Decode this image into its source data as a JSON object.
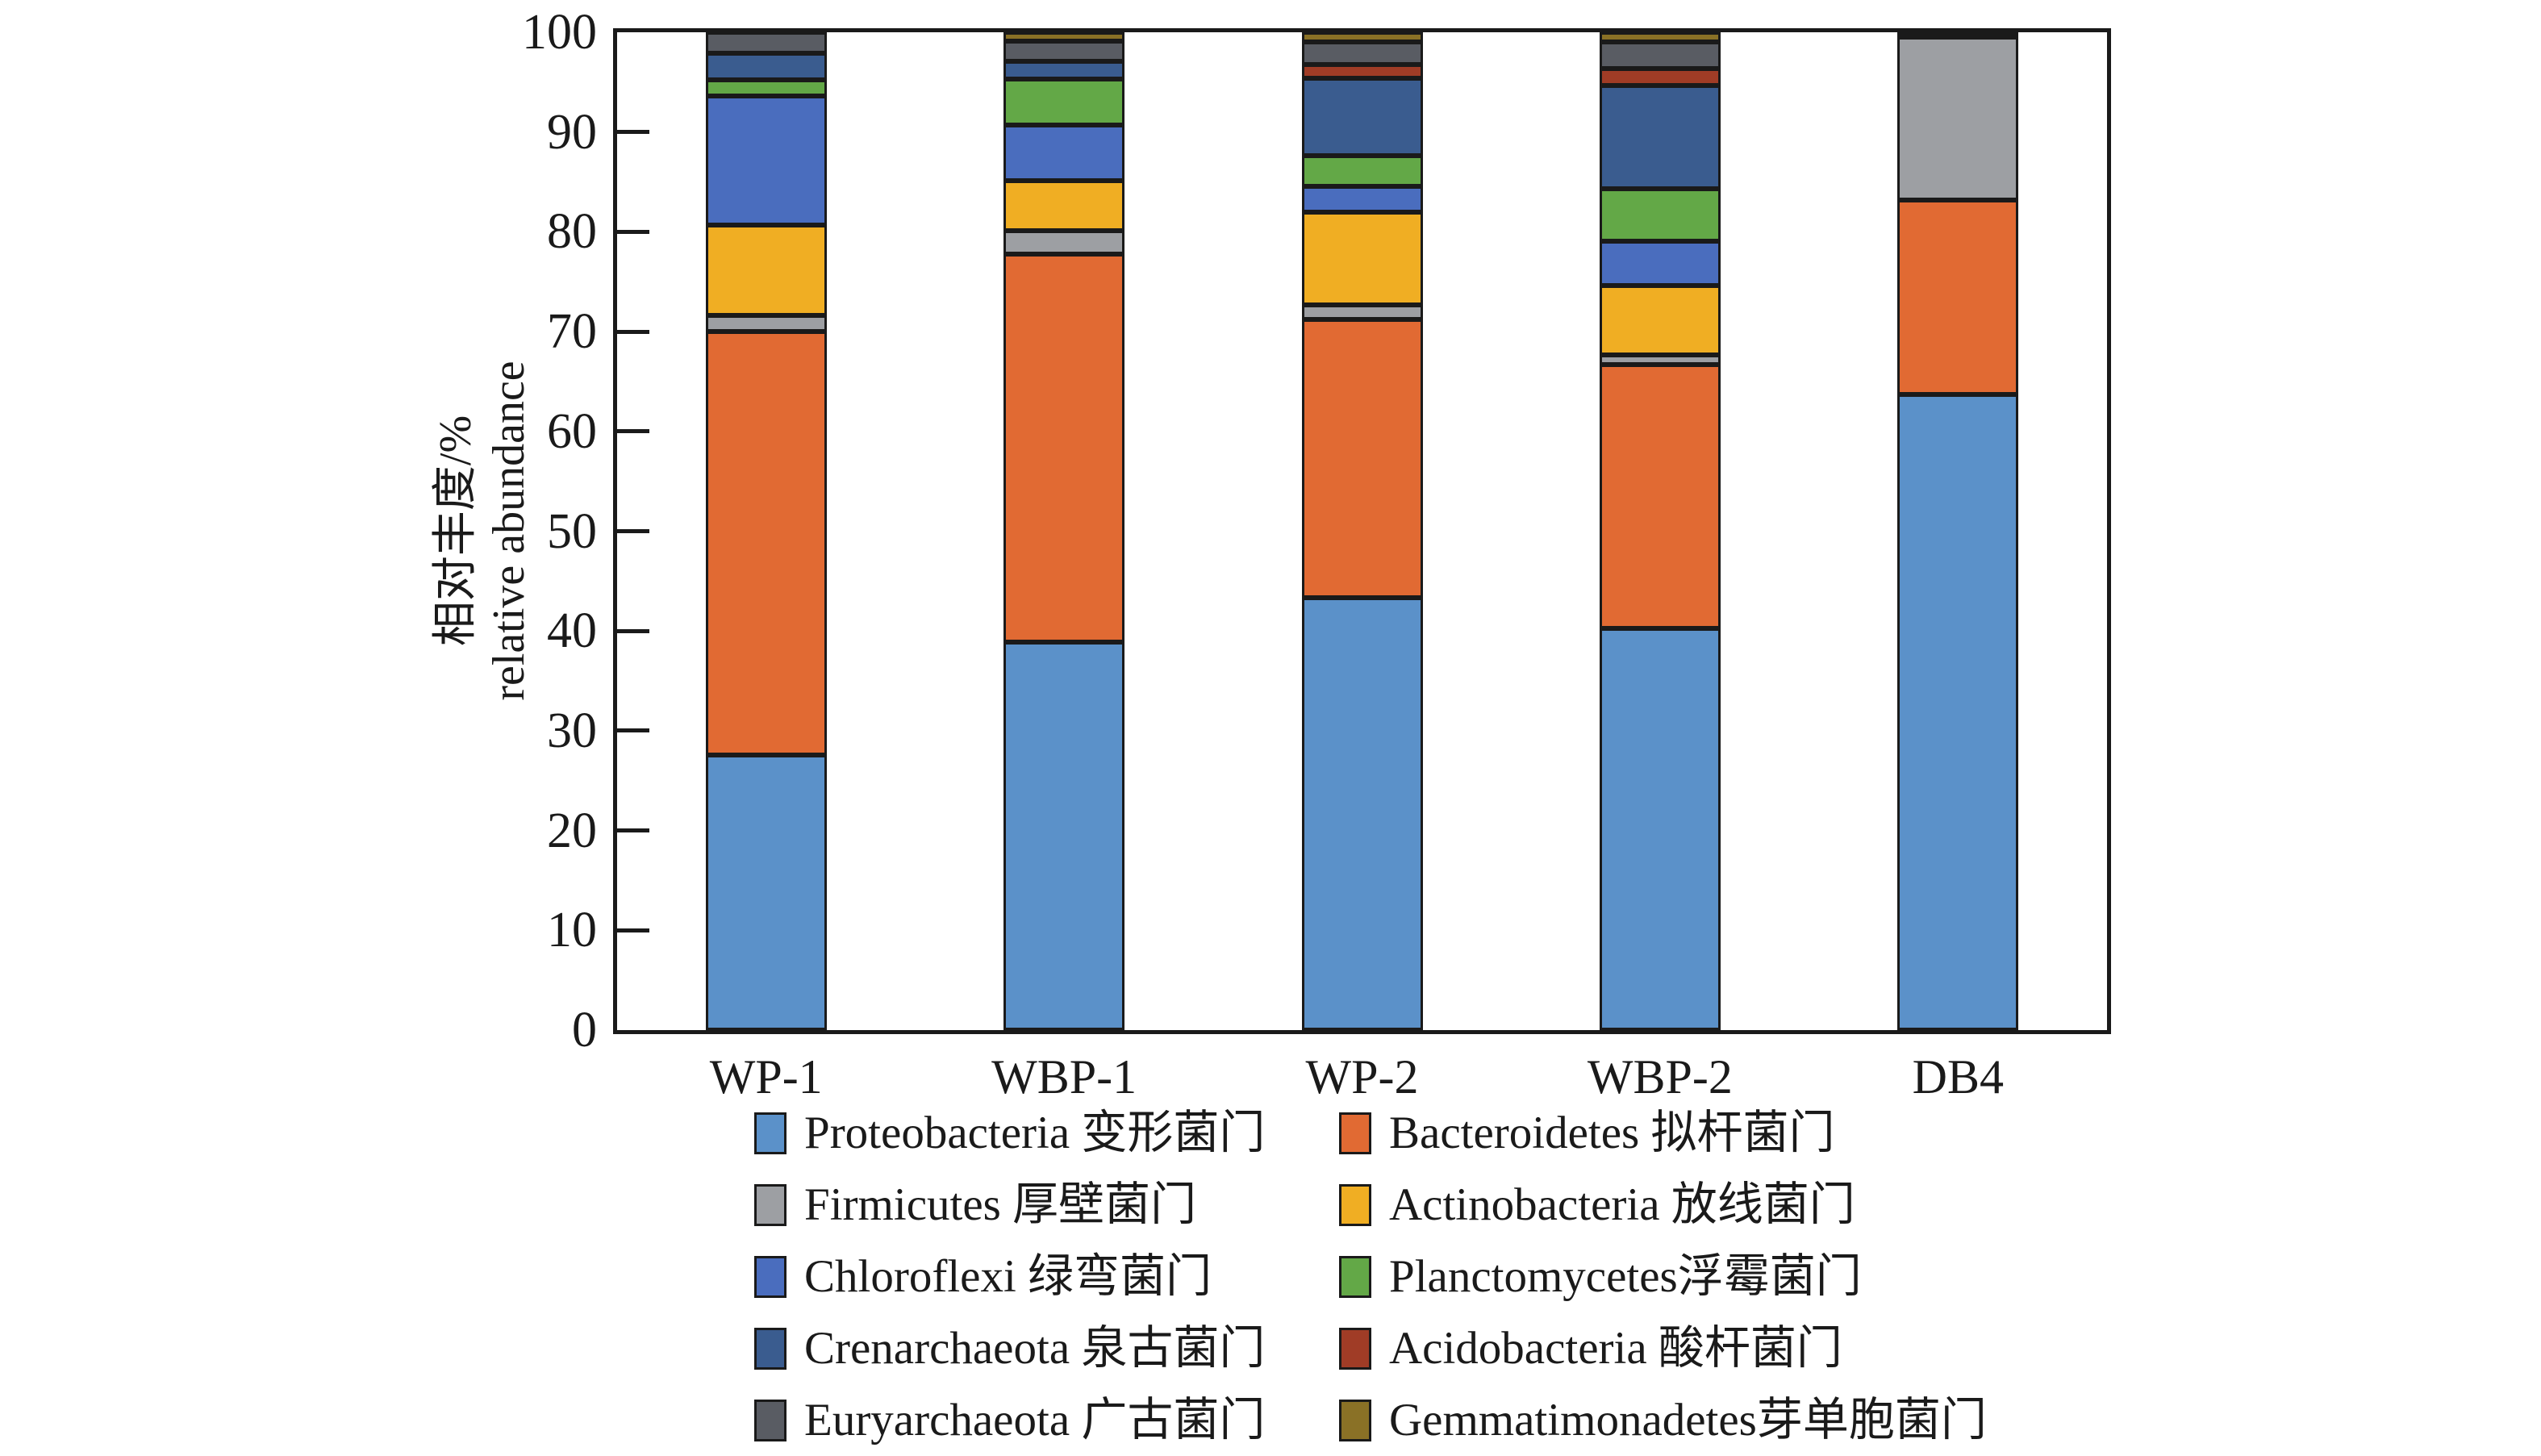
{
  "figure": {
    "background": "#ffffff",
    "frame_color": "#1a1a1a"
  },
  "axes": {
    "y_title_line1": "相对丰度/%",
    "y_title_line2": "relative abundance",
    "y_tick_labels": [
      "0",
      "10",
      "20",
      "30",
      "40",
      "50",
      "60",
      "70",
      "80",
      "90",
      "100"
    ],
    "x_tick_labels": [
      "WP-1",
      "WBP-1",
      "WP-2",
      "WBP-2",
      "DB4"
    ]
  },
  "chart_data": {
    "type": "bar",
    "stacked": true,
    "title": "",
    "xlabel": "",
    "ylabel": "相对丰度/% relative abundance",
    "ylim": [
      0,
      100
    ],
    "grid": false,
    "legend_position": "bottom",
    "categories": [
      "WP-1",
      "WBP-1",
      "WP-2",
      "WBP-2",
      "DB4"
    ],
    "series": [
      {
        "name": "Proteobacteria",
        "legend_label": "Proteobacteria 变形菌门",
        "color": "#5B91C9",
        "values": [
          27.6,
          38.9,
          43.3,
          40.3,
          63.7
        ]
      },
      {
        "name": "Bacteroidetes",
        "legend_label": "Bacteroidetes 拟杆菌门",
        "color": "#E16A33",
        "values": [
          42.4,
          38.9,
          27.9,
          26.4,
          19.5
        ]
      },
      {
        "name": "Firmicutes",
        "legend_label": "Firmicutes 厚壁菌门",
        "color": "#9D9FA3",
        "values": [
          1.6,
          2.3,
          1.5,
          1.0,
          16.3
        ]
      },
      {
        "name": "Actinobacteria",
        "legend_label": "Actinobacteria 放线菌门",
        "color": "#F0AE23",
        "values": [
          9.1,
          5.0,
          9.3,
          6.9,
          0
        ]
      },
      {
        "name": "Chloroflexi",
        "legend_label": "Chloroflexi 绿弯菌门",
        "color": "#4A6DBE",
        "values": [
          12.9,
          5.6,
          2.6,
          4.5,
          0
        ]
      },
      {
        "name": "Planctomycetes",
        "legend_label": "Planctomycetes浮霉菌门",
        "color": "#63A847",
        "values": [
          1.6,
          4.6,
          3.0,
          5.2,
          0
        ]
      },
      {
        "name": "Crenarchaeota",
        "legend_label": "Crenarchaeota 泉古菌门",
        "color": "#3A5C8F",
        "values": [
          2.7,
          1.8,
          7.8,
          10.4,
          0.5
        ]
      },
      {
        "name": "Acidobacteria",
        "legend_label": "Acidobacteria 酸杆菌门",
        "color": "#A03C26",
        "values": [
          0,
          0,
          1.4,
          1.7,
          0
        ]
      },
      {
        "name": "Euryarchaeota",
        "legend_label": "Euryarchaeota 广古菌门",
        "color": "#595C63",
        "values": [
          2.1,
          2.0,
          2.2,
          2.6,
          0
        ]
      },
      {
        "name": "Gemmatimonadetes",
        "legend_label": "Gemmatimonadetes芽单胞菌门",
        "color": "#8A7126",
        "values": [
          0,
          0.9,
          1.0,
          1.0,
          0
        ]
      }
    ]
  }
}
